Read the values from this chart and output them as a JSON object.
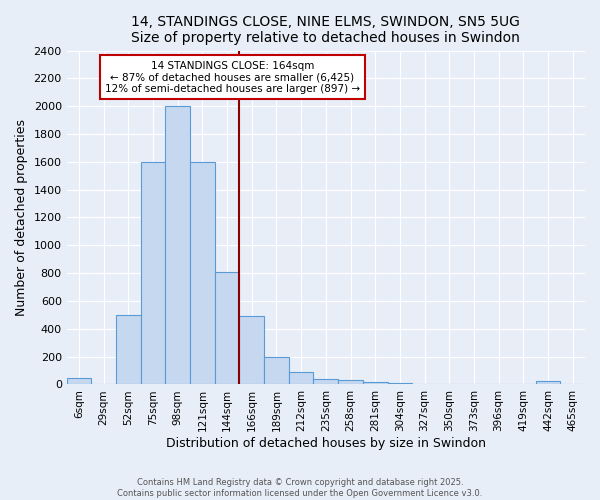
{
  "title": "14, STANDINGS CLOSE, NINE ELMS, SWINDON, SN5 5UG",
  "subtitle": "Size of property relative to detached houses in Swindon",
  "xlabel": "Distribution of detached houses by size in Swindon",
  "ylabel": "Number of detached properties",
  "bar_color": "#c5d8f0",
  "bar_edge_color": "#5b9bd5",
  "background_color": "#e8eef8",
  "grid_color": "#ffffff",
  "categories": [
    "6sqm",
    "29sqm",
    "52sqm",
    "75sqm",
    "98sqm",
    "121sqm",
    "144sqm",
    "166sqm",
    "189sqm",
    "212sqm",
    "235sqm",
    "258sqm",
    "281sqm",
    "304sqm",
    "327sqm",
    "350sqm",
    "373sqm",
    "396sqm",
    "419sqm",
    "442sqm",
    "465sqm"
  ],
  "values": [
    50,
    0,
    500,
    1600,
    2000,
    1600,
    810,
    490,
    200,
    90,
    40,
    30,
    20,
    10,
    5,
    0,
    0,
    0,
    0,
    25,
    0
  ],
  "vline_color": "#8b0000",
  "annotation_title": "14 STANDINGS CLOSE: 164sqm",
  "annotation_line1": "← 87% of detached houses are smaller (6,425)",
  "annotation_line2": "12% of semi-detached houses are larger (897) →",
  "annotation_box_color": "#ffffff",
  "annotation_border_color": "#c00000",
  "ylim": [
    0,
    2400
  ],
  "yticks": [
    0,
    200,
    400,
    600,
    800,
    1000,
    1200,
    1400,
    1600,
    1800,
    2000,
    2200,
    2400
  ],
  "footer1": "Contains HM Land Registry data © Crown copyright and database right 2025.",
  "footer2": "Contains public sector information licensed under the Open Government Licence v3.0.",
  "title_fontsize": 10,
  "bar_width": 1.0
}
